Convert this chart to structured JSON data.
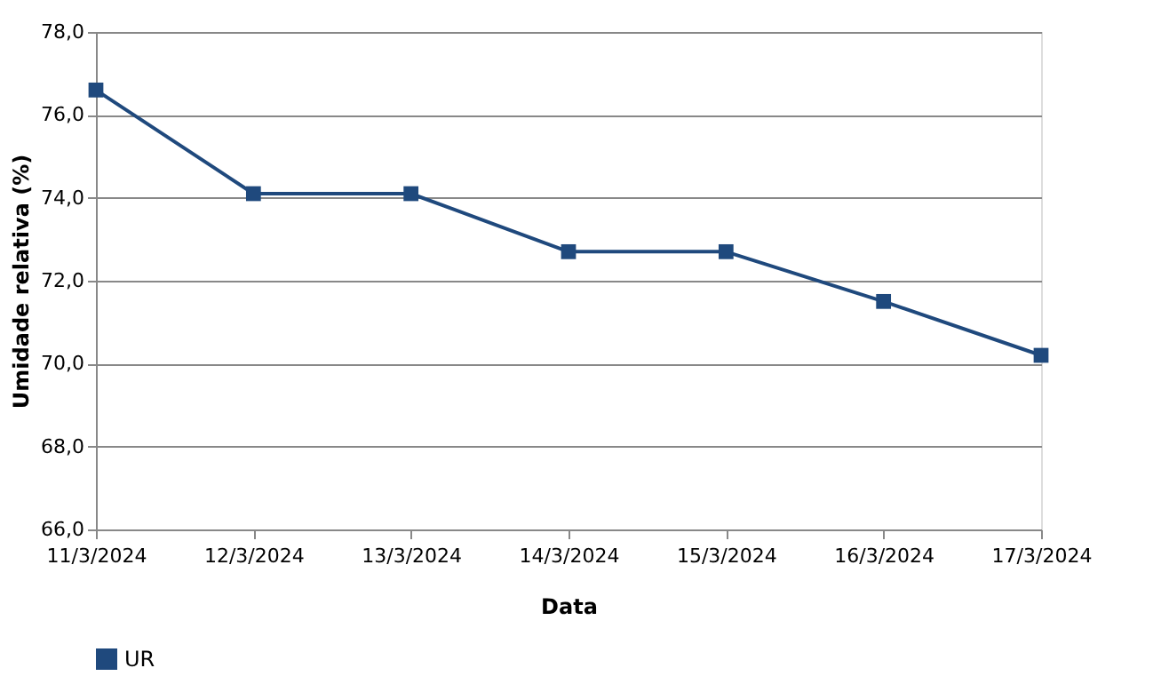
{
  "chart_data": {
    "type": "line",
    "xlabel": "Data",
    "ylabel": "Umidade relativa (%)",
    "categories": [
      "11/3/2024",
      "12/3/2024",
      "13/3/2024",
      "14/3/2024",
      "15/3/2024",
      "16/3/2024",
      "17/3/2024"
    ],
    "series": [
      {
        "name": "UR",
        "color": "#1f497d",
        "values": [
          76.6,
          74.1,
          74.1,
          72.7,
          72.7,
          71.5,
          70.2
        ]
      }
    ],
    "ylim": [
      66,
      78
    ],
    "yticks": [
      {
        "value": 66,
        "label": "66,0"
      },
      {
        "value": 68,
        "label": "68,0"
      },
      {
        "value": 70,
        "label": "70,0"
      },
      {
        "value": 72,
        "label": "72,0"
      },
      {
        "value": 74,
        "label": "74,0"
      },
      {
        "value": 76,
        "label": "76,0"
      },
      {
        "value": 78,
        "label": "78,0"
      }
    ],
    "grid": "y",
    "legend": "bottom",
    "marker": "square",
    "line_style": "solid"
  }
}
